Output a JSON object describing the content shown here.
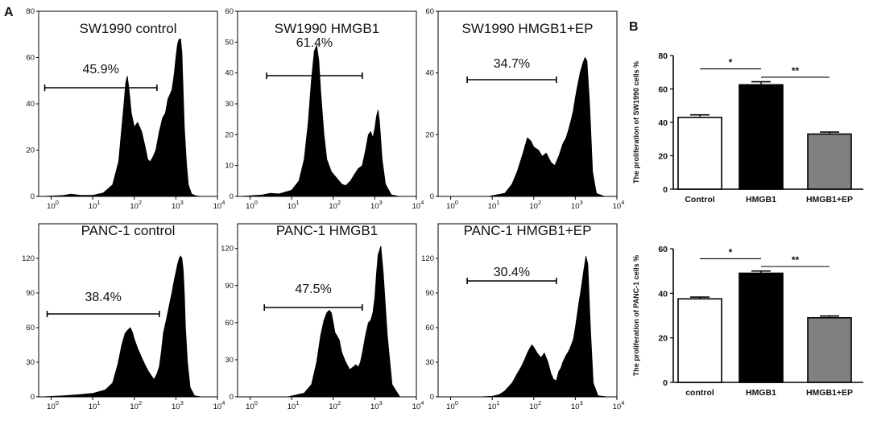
{
  "panel_labels": {
    "a": "A",
    "b": "B"
  },
  "chart_data": [
    {
      "type": "area",
      "title": "SW1990 control",
      "gate_percent": "45.9%",
      "gate_range": [
        0.7,
        350
      ],
      "x_scale": "log",
      "xlim": [
        0.5,
        10000
      ],
      "x_ticks": [
        "10^0",
        "10^1",
        "10^2",
        "10^3",
        "10^4"
      ],
      "ylim": [
        0,
        80
      ],
      "y_ticks": [
        0,
        20,
        40,
        60,
        80
      ],
      "x": [
        0.6,
        2,
        3,
        5,
        10,
        18,
        30,
        42,
        55,
        62,
        68,
        75,
        85,
        100,
        120,
        150,
        180,
        210,
        240,
        280,
        330,
        400,
        480,
        560,
        640,
        720,
        800,
        900,
        1000,
        1100,
        1200,
        1300,
        1400,
        1500,
        1600,
        1800,
        2000,
        2400,
        3000,
        4000,
        6000,
        9000
      ],
      "y": [
        0,
        0.4,
        1,
        0.5,
        0.5,
        1.5,
        5,
        15,
        38,
        49,
        52,
        46,
        36,
        30,
        32,
        28,
        22,
        16,
        15,
        17,
        20,
        28,
        34,
        36,
        42,
        44,
        46,
        52,
        60,
        66,
        68,
        68,
        62,
        45,
        30,
        14,
        5,
        1,
        0.3,
        0,
        0,
        0
      ]
    },
    {
      "type": "area",
      "title": "SW1990 HMGB1",
      "gate_percent": "61.4%",
      "gate_range": [
        2.5,
        500
      ],
      "x_scale": "log",
      "xlim": [
        0.5,
        10000
      ],
      "x_ticks": [
        "10^0",
        "10^1",
        "10^2",
        "10^3",
        "10^4"
      ],
      "ylim": [
        0,
        60
      ],
      "y_ticks": [
        0,
        10,
        20,
        30,
        40,
        50,
        60
      ],
      "x": [
        0.6,
        2,
        3,
        5,
        10,
        15,
        20,
        25,
        30,
        35,
        40,
        45,
        50,
        60,
        70,
        90,
        120,
        160,
        200,
        260,
        320,
        400,
        500,
        600,
        700,
        800,
        900,
        1000,
        1100,
        1200,
        1300,
        1500,
        1800,
        2500,
        4000,
        9000
      ],
      "y": [
        0,
        0.5,
        1,
        0.8,
        2,
        5,
        12,
        24,
        38,
        47,
        49,
        44,
        34,
        20,
        12,
        8,
        6,
        4,
        3.5,
        5,
        7,
        9,
        10,
        15,
        20,
        21,
        19,
        22,
        26,
        28,
        24,
        12,
        4,
        0.5,
        0,
        0
      ]
    },
    {
      "type": "area",
      "title": "SW1990 HMGB1+EP",
      "gate_percent": "34.7%",
      "gate_range": [
        2.5,
        350
      ],
      "x_scale": "log",
      "xlim": [
        0.5,
        10000
      ],
      "x_ticks": [
        "10^0",
        "10^1",
        "10^2",
        "10^3",
        "10^4"
      ],
      "ylim": [
        0,
        60
      ],
      "y_ticks": [
        0,
        20,
        40,
        60
      ],
      "x": [
        0.6,
        3,
        8,
        20,
        30,
        40,
        55,
        70,
        85,
        100,
        130,
        160,
        200,
        260,
        320,
        400,
        500,
        600,
        700,
        800,
        900,
        1000,
        1100,
        1300,
        1500,
        1700,
        1900,
        2200,
        2600,
        3200,
        5000,
        9000
      ],
      "y": [
        0,
        0,
        0,
        1,
        4,
        8,
        14,
        19,
        18,
        16,
        15,
        13,
        14,
        11,
        10,
        13,
        17,
        19,
        22,
        25,
        28,
        32,
        35,
        40,
        43,
        45,
        44,
        30,
        8,
        1,
        0,
        0
      ]
    },
    {
      "type": "area",
      "title": "PANC-1 control",
      "gate_percent": "38.4%",
      "gate_range": [
        0.8,
        400
      ],
      "x_scale": "log",
      "xlim": [
        0.5,
        10000
      ],
      "x_ticks": [
        "10^0",
        "10^1",
        "10^2",
        "10^3",
        "10^4"
      ],
      "ylim": [
        0,
        150
      ],
      "y_ticks": [
        0,
        30,
        60,
        90,
        120
      ],
      "x": [
        0.6,
        2,
        5,
        10,
        20,
        30,
        40,
        50,
        60,
        70,
        80,
        90,
        100,
        120,
        150,
        180,
        220,
        260,
        300,
        350,
        400,
        450,
        500,
        600,
        700,
        800,
        900,
        1000,
        1100,
        1200,
        1300,
        1400,
        1500,
        1600,
        1700,
        1900,
        2200,
        2800,
        4000,
        9000
      ],
      "y": [
        0,
        1,
        2,
        3,
        6,
        12,
        28,
        45,
        55,
        58,
        60,
        56,
        50,
        42,
        34,
        28,
        22,
        18,
        15,
        20,
        26,
        40,
        55,
        68,
        80,
        90,
        100,
        108,
        115,
        120,
        122,
        120,
        110,
        90,
        60,
        30,
        8,
        1,
        0,
        0
      ]
    },
    {
      "type": "area",
      "title": "PANC-1 HMGB1",
      "gate_percent": "47.5%",
      "gate_range": [
        2.2,
        500
      ],
      "x_scale": "log",
      "xlim": [
        0.5,
        10000
      ],
      "x_ticks": [
        "10^0",
        "10^1",
        "10^2",
        "10^3",
        "10^4"
      ],
      "ylim": [
        0,
        140
      ],
      "y_ticks": [
        0,
        30,
        60,
        90,
        120
      ],
      "x": [
        0.6,
        3,
        8,
        20,
        30,
        40,
        50,
        60,
        70,
        80,
        90,
        100,
        110,
        120,
        140,
        160,
        200,
        250,
        300,
        350,
        400,
        450,
        500,
        600,
        700,
        800,
        900,
        1000,
        1100,
        1200,
        1400,
        1600,
        2000,
        2600,
        4000,
        9000
      ],
      "y": [
        0,
        0,
        0,
        3,
        10,
        28,
        50,
        62,
        68,
        70,
        68,
        60,
        52,
        50,
        46,
        36,
        28,
        22,
        24,
        26,
        24,
        28,
        35,
        50,
        60,
        62,
        68,
        80,
        100,
        115,
        122,
        100,
        50,
        10,
        0,
        0
      ]
    },
    {
      "type": "area",
      "title": "PANC-1 HMGB1+EP",
      "gate_percent": "30.4%",
      "gate_range": [
        2.5,
        350
      ],
      "x_scale": "log",
      "xlim": [
        0.5,
        10000
      ],
      "x_ticks": [
        "10^0",
        "10^1",
        "10^2",
        "10^3",
        "10^4"
      ],
      "ylim": [
        0,
        150
      ],
      "y_ticks": [
        0,
        30,
        60,
        90,
        120
      ],
      "x": [
        0.6,
        5,
        10,
        15,
        20,
        30,
        40,
        50,
        60,
        70,
        80,
        90,
        100,
        120,
        150,
        180,
        220,
        260,
        300,
        350,
        400,
        450,
        500,
        600,
        700,
        800,
        900,
        1000,
        1200,
        1400,
        1600,
        1800,
        2000,
        2300,
        2700,
        3500,
        6000
      ],
      "y": [
        0,
        0,
        0.5,
        2,
        5,
        12,
        20,
        26,
        32,
        38,
        42,
        45,
        43,
        38,
        34,
        38,
        30,
        20,
        15,
        14,
        22,
        25,
        30,
        36,
        40,
        45,
        50,
        60,
        80,
        95,
        110,
        122,
        115,
        60,
        12,
        1,
        0
      ]
    },
    {
      "type": "bar",
      "ylabel": "The proliferation of  SW1990 cells %",
      "categories": [
        "Control",
        "HMGB1",
        "HMGB1+EP"
      ],
      "values": [
        43,
        62.5,
        33
      ],
      "errors": [
        1.5,
        1.8,
        1.2
      ],
      "bar_colors": [
        "#ffffff",
        "#000000",
        "#808080"
      ],
      "ylim": [
        0,
        80
      ],
      "y_ticks": [
        0,
        20,
        40,
        60,
        80
      ],
      "significance": [
        {
          "label": "*",
          "from": 0,
          "to": 1,
          "y": 72
        },
        {
          "label": "**",
          "from": 1,
          "to": 2,
          "y": 67
        }
      ]
    },
    {
      "type": "bar",
      "ylabel": "The proliferation of PANC-1 cells %",
      "categories": [
        "control",
        "HMGB1",
        "HMGB1+EP"
      ],
      "values": [
        37.5,
        49,
        29
      ],
      "errors": [
        0.8,
        1.0,
        0.8
      ],
      "bar_colors": [
        "#ffffff",
        "#000000",
        "#808080"
      ],
      "ylim": [
        0,
        60
      ],
      "y_ticks": [
        0,
        20,
        40,
        60
      ],
      "significance": [
        {
          "label": "*",
          "from": 0,
          "to": 1,
          "y": 55.5
        },
        {
          "label": "**",
          "from": 1,
          "to": 2,
          "y": 52
        }
      ]
    }
  ]
}
